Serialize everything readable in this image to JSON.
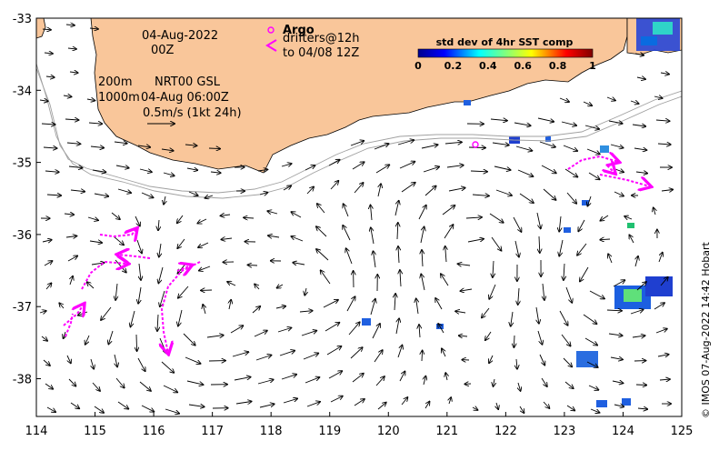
{
  "map": {
    "date_line": "04-Aug-2022",
    "time_line": "00Z",
    "contour_labels": [
      "200m",
      "1000m"
    ],
    "product": "NRT00 GSL",
    "product_time": "04-Aug 06:00Z",
    "velocity_scale": "0.5m/s (1kt 24h)",
    "argo_label": "Argo",
    "drifters_line1": "drifters@12h",
    "drifters_line2": "to 04/08 12Z",
    "colorbar_title": "std dev of 4hr SST comp",
    "colorbar_ticks": [
      "0",
      "0.2",
      "0.4",
      "0.6",
      "0.8",
      "1"
    ],
    "credit": "© IMOS 07-Aug-2022 14:42 Hobart",
    "x_ticks": [
      "114",
      "115",
      "116",
      "117",
      "118",
      "119",
      "120",
      "121",
      "122",
      "123",
      "124",
      "125"
    ],
    "y_ticks": [
      "-33",
      "-34",
      "-35",
      "-36",
      "-37",
      "-38"
    ],
    "colors": {
      "land": "#f9c69a",
      "drifter": "#ff00ff",
      "contour": "#a0a0a0",
      "arrow": "#000000"
    }
  }
}
